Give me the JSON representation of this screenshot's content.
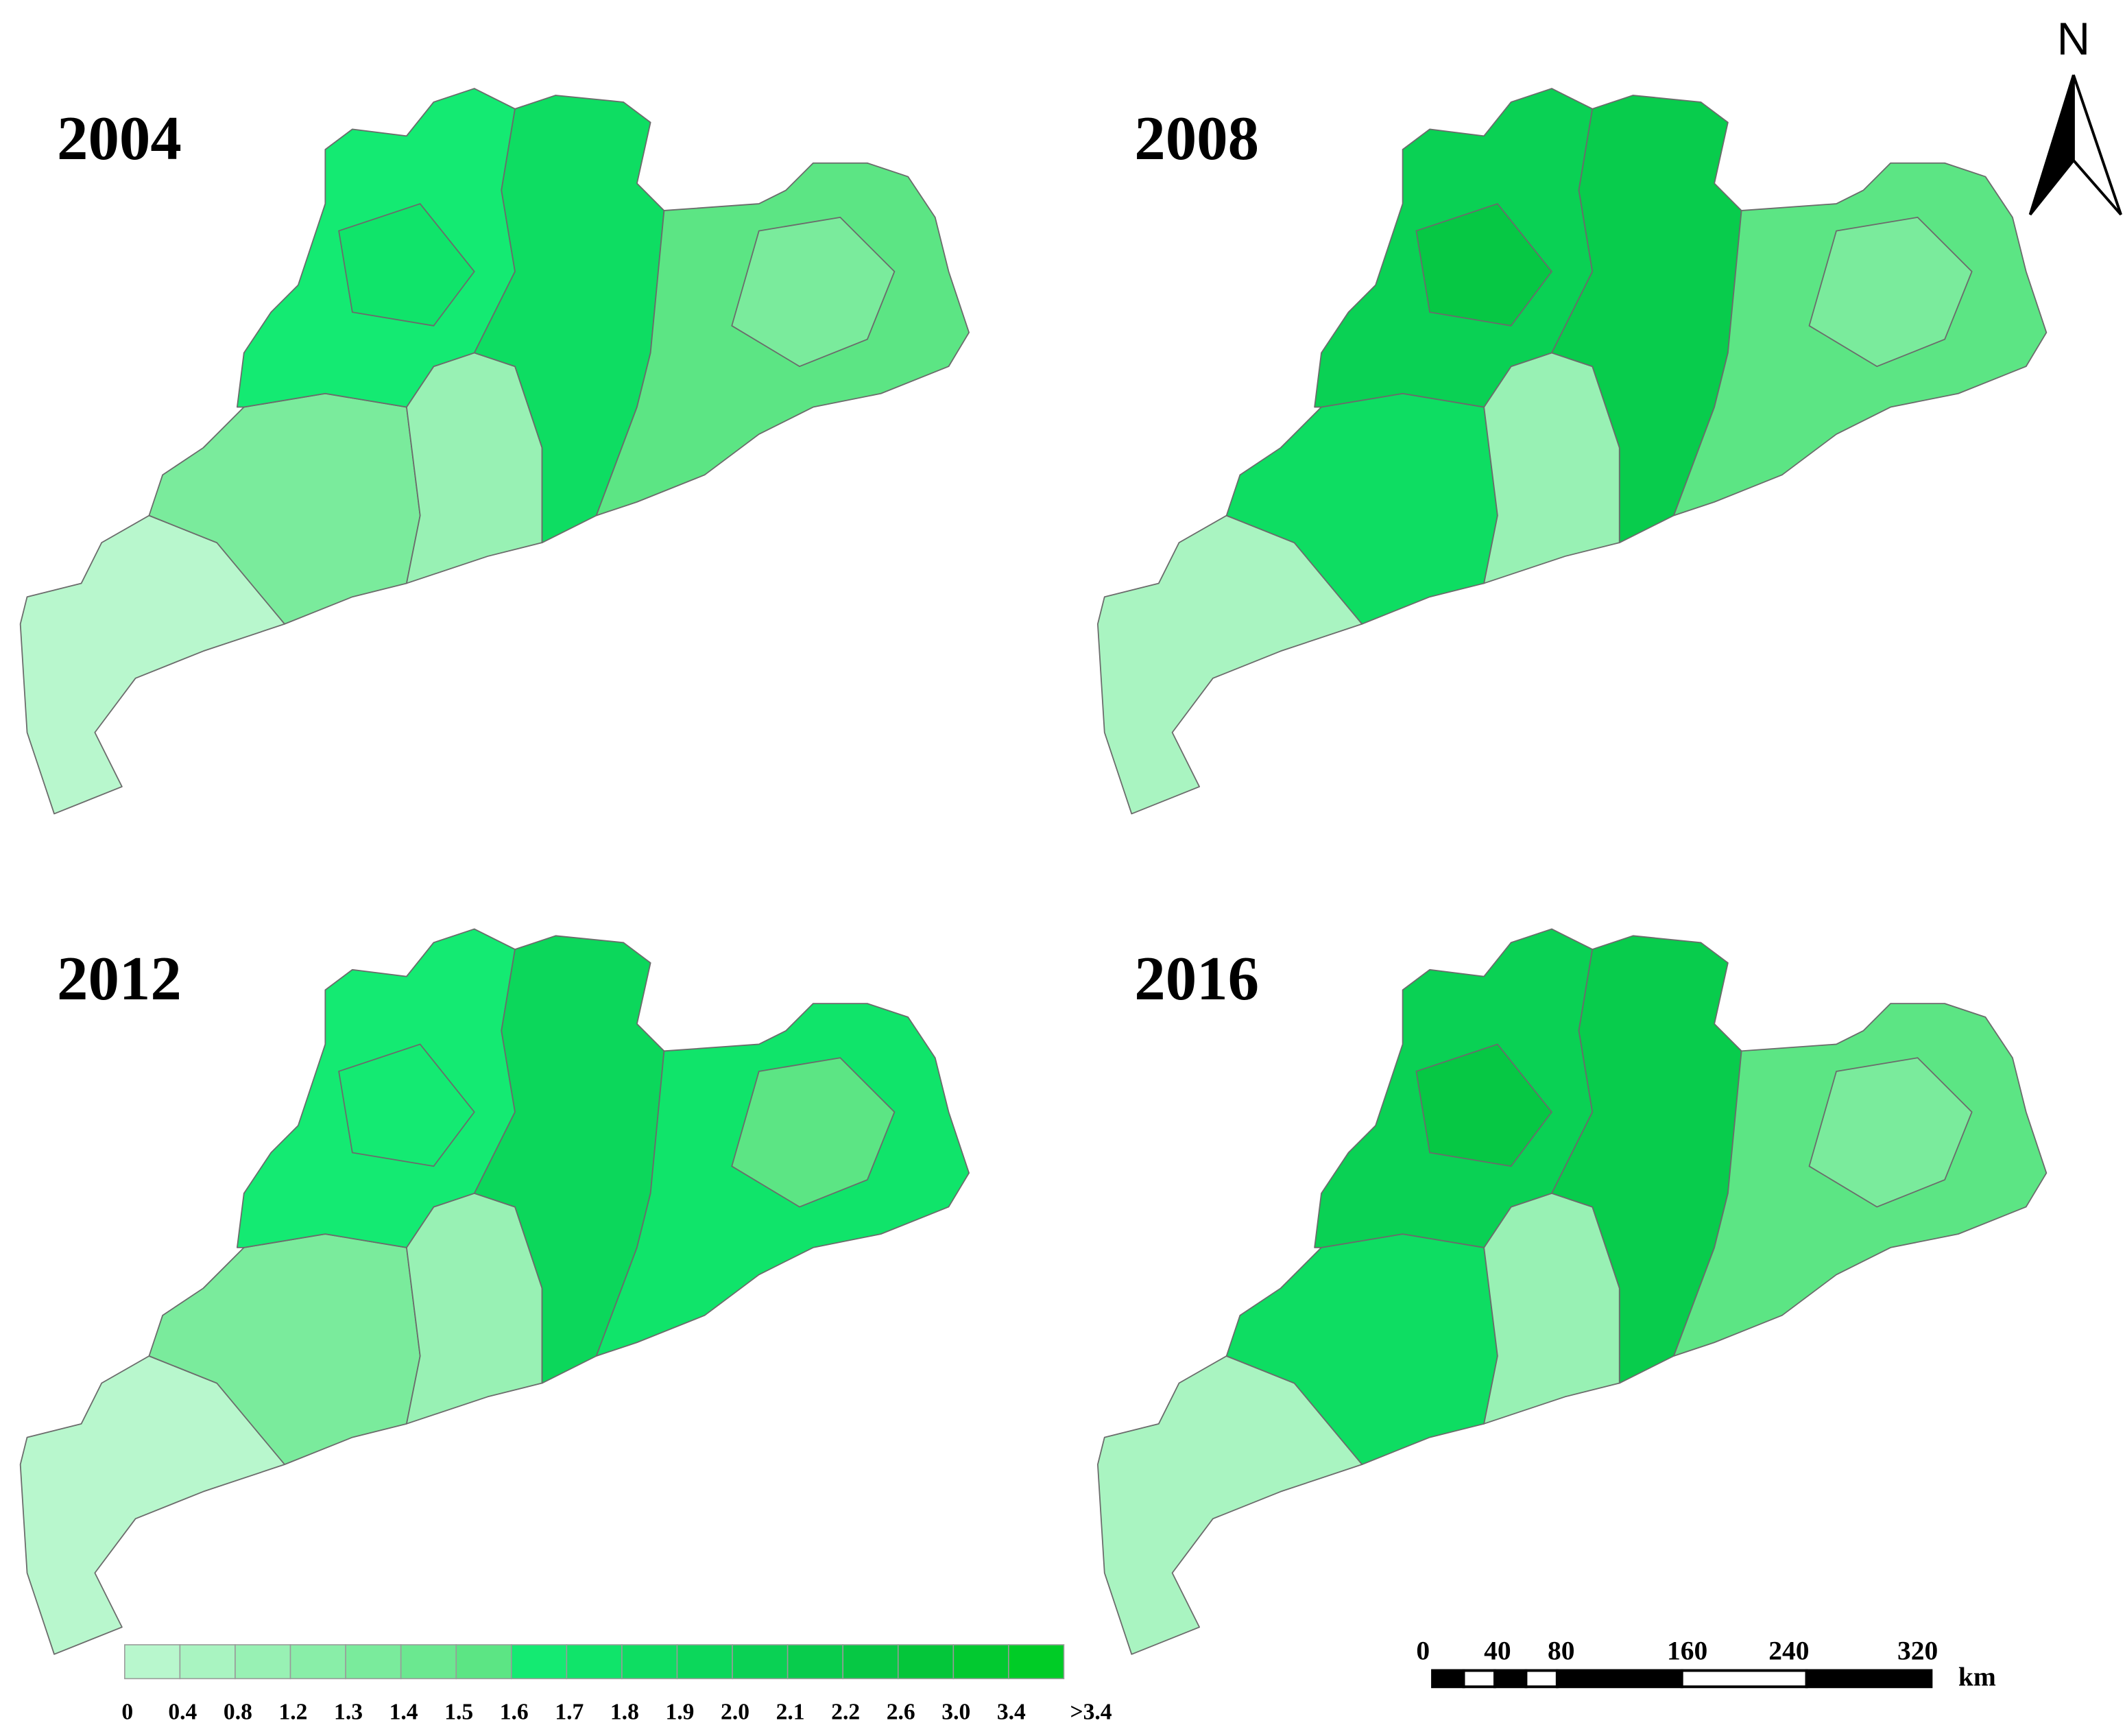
{
  "panels": [
    {
      "title": "2004"
    },
    {
      "title": "2008"
    },
    {
      "title": "2012"
    },
    {
      "title": "2016"
    }
  ],
  "legend": {
    "labels": [
      "0",
      "0.4",
      "0.8",
      "1.2",
      "1.3",
      "1.4",
      "1.5",
      "1.6",
      "1.7",
      "1.8",
      "1.9",
      "2.0",
      "2.1",
      "2.2",
      "2.6",
      "3.0",
      "3.4",
      ">3.4"
    ],
    "colors": [
      "#b8f7cd",
      "#a9f4c1",
      "#98f1b4",
      "#89eea8",
      "#7aeb9c",
      "#6be890",
      "#5ce584",
      "#14ea72",
      "#10e46a",
      "#0edd62",
      "#0cd75b",
      "#0ad154",
      "#08cc4c",
      "#06c844",
      "#04c63a",
      "#02c930",
      "#00cc26"
    ]
  },
  "scale_bar": {
    "labels": [
      "0",
      "40",
      "80",
      "160",
      "240",
      "320"
    ],
    "unit": "km"
  },
  "north_arrow": "N"
}
